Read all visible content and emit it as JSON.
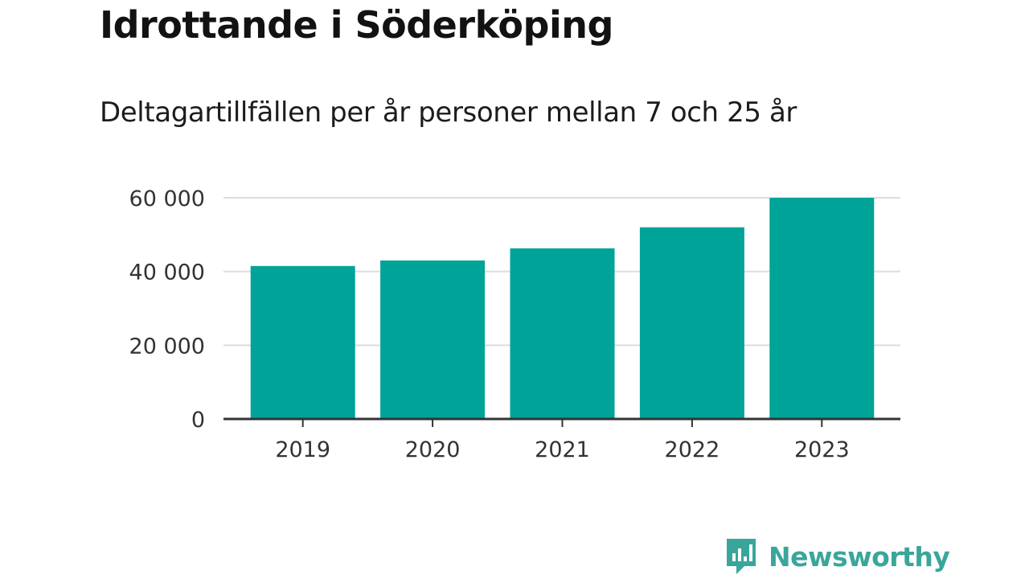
{
  "title": "Idrottande i Söderköping",
  "subtitle": "Deltagartillfällen per år personer mellan 7 och 25 år",
  "brand": {
    "name": "Newsworthy",
    "icon": "newsworthy-logo-icon",
    "color": "#3aa69b"
  },
  "chart_data": {
    "type": "bar",
    "categories": [
      "2019",
      "2020",
      "2021",
      "2022",
      "2023"
    ],
    "values": [
      41500,
      43000,
      46300,
      52000,
      60000
    ],
    "ylim": [
      0,
      60000
    ],
    "yticks": [
      0,
      20000,
      40000,
      60000
    ],
    "ytick_labels": [
      "0",
      "20 000",
      "40 000",
      "60 000"
    ],
    "bar_color": "#00a398",
    "grid": true,
    "legend": "none"
  }
}
